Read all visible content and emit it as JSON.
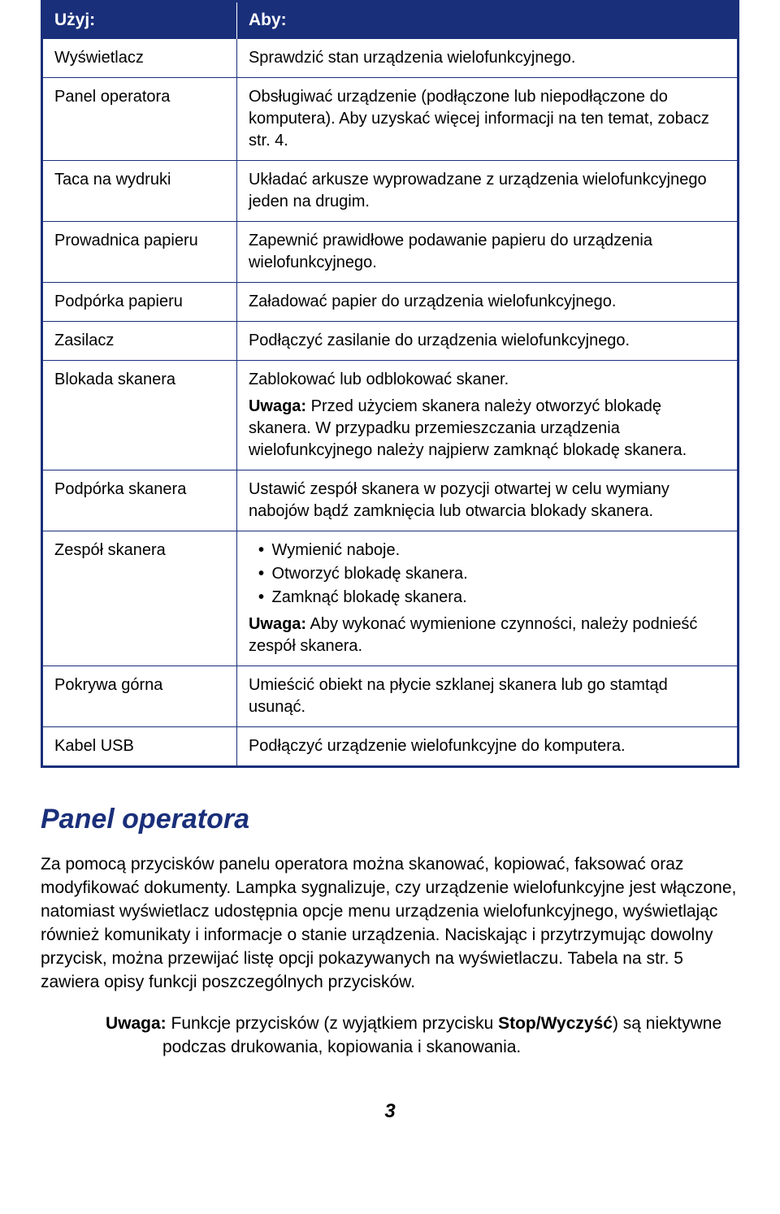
{
  "table": {
    "header_left": "Użyj:",
    "header_right": "Aby:",
    "rows": [
      {
        "left": "Wyświetlacz",
        "right": [
          "Sprawdzić stan urządzenia wielofunkcyjnego."
        ]
      },
      {
        "left": "Panel operatora",
        "right": [
          "Obsługiwać urządzenie (podłączone lub niepodłączone do komputera). Aby uzyskać więcej informacji na ten temat, zobacz str. 4."
        ]
      },
      {
        "left": "Taca na wydruki",
        "right": [
          "Układać arkusze wyprowadzane z urządzenia wielofunkcyjnego jeden na drugim."
        ]
      },
      {
        "left": "Prowadnica papieru",
        "right": [
          "Zapewnić prawidłowe podawanie papieru do urządzenia wielofunkcyjnego."
        ]
      },
      {
        "left": "Podpórka papieru",
        "right": [
          "Załadować papier do urządzenia wielofunkcyjnego."
        ]
      },
      {
        "left": "Zasilacz",
        "right": [
          "Podłączyć zasilanie do urządzenia wielofunkcyjnego."
        ]
      },
      {
        "left": "Blokada skanera",
        "right_type": "note",
        "right_main": "Zablokować lub odblokować skaner.",
        "right_note_label": "Uwaga:",
        "right_note_text": " Przed użyciem skanera należy otworzyć blokadę skanera. W przypadku przemieszczania urządzenia wielofunkcyjnego należy najpierw zamknąć blokadę skanera."
      },
      {
        "left": "Podpórka skanera",
        "right": [
          "Ustawić zespół skanera w pozycji otwartej w celu wymiany nabojów bądź zamknięcia lub otwarcia blokady skanera."
        ]
      },
      {
        "left": "Zespół skanera",
        "right_type": "bullets_note",
        "bullets": [
          "Wymienić naboje.",
          "Otworzyć blokadę skanera.",
          "Zamknąć blokadę skanera."
        ],
        "right_note_label": "Uwaga:",
        "right_note_text": " Aby wykonać wymienione czynności, należy podnieść zespół skanera."
      },
      {
        "left": "Pokrywa górna",
        "right": [
          "Umieścić obiekt na płycie szklanej skanera lub go stamtąd usunąć."
        ]
      },
      {
        "left": "Kabel USB",
        "right": [
          "Podłączyć urządzenie wielofunkcyjne do komputera."
        ]
      }
    ]
  },
  "section_title": "Panel operatora",
  "body_paragraph": "Za pomocą przycisków panelu operatora można skanować, kopiować, faksować oraz modyfikować dokumenty. Lampka sygnalizuje, czy urządzenie wielofunkcyjne jest włączone, natomiast wyświetlacz udostępnia opcje menu urządzenia wielofunkcyjnego, wyświetlając również komunikaty i informacje o stanie urządzenia. Naciskając i przytrzymując dowolny przycisk, można przewijać listę opcji pokazywanych na wyświetlaczu. Tabela na str. 5 zawiera opisy funkcji poszczególnych przycisków.",
  "footer_note_label": "Uwaga:",
  "footer_note_bold": "Stop/Wyczyść",
  "footer_note_pre": " Funkcje przycisków (z wyjątkiem przycisku ",
  "footer_note_post": ") są niektywne podczas drukowania, kopiowania i skanowania.",
  "page_number": "3"
}
